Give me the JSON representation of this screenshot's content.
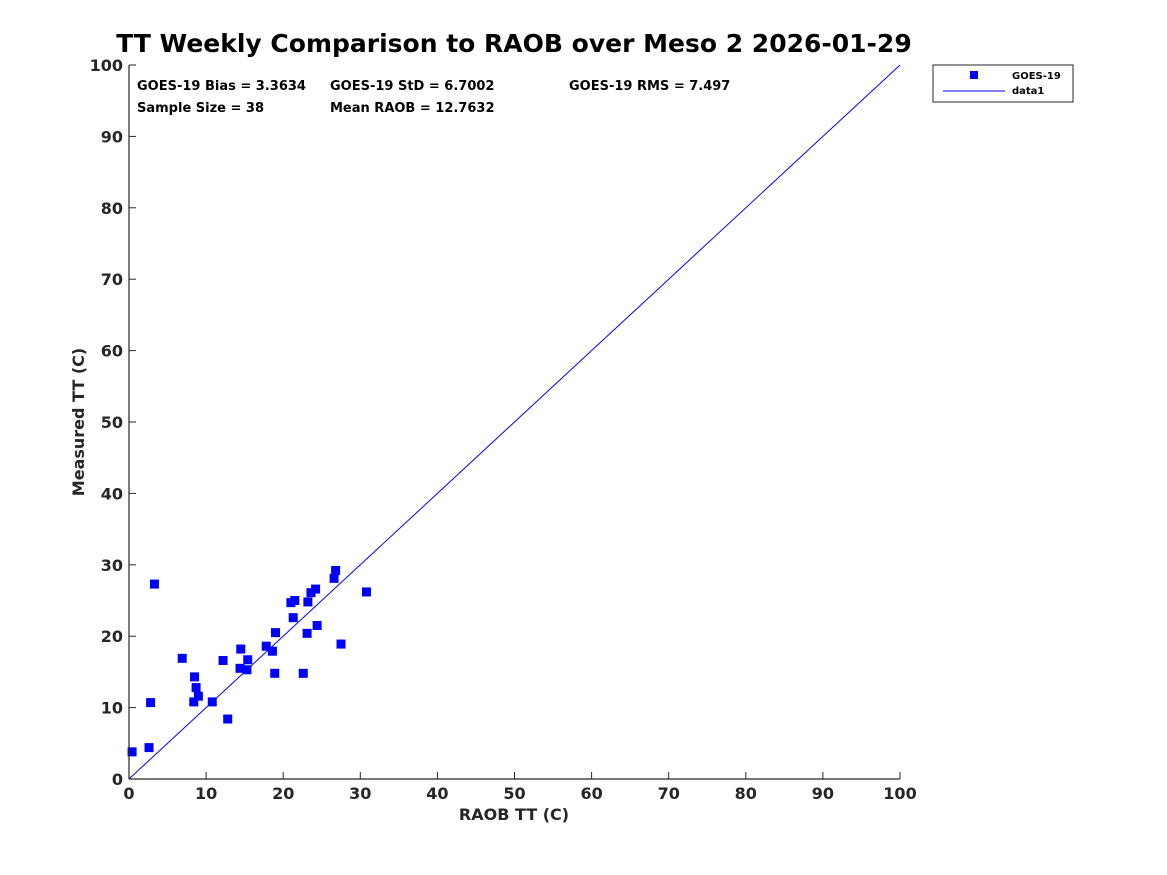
{
  "chart_data": {
    "type": "scatter",
    "title": "TT Weekly Comparison to RAOB over Meso 2 2026-01-29",
    "xlabel": "RAOB TT (C)",
    "ylabel": "Measured TT (C)",
    "xlim": [
      0,
      100
    ],
    "ylim": [
      0,
      100
    ],
    "xticks": [
      "0",
      "10",
      "20",
      "30",
      "40",
      "50",
      "60",
      "70",
      "80",
      "90",
      "100"
    ],
    "yticks": [
      "0",
      "10",
      "20",
      "30",
      "40",
      "50",
      "60",
      "70",
      "80",
      "90",
      "100"
    ],
    "grid": false,
    "legend_position": "outside-top-right",
    "stats": [
      "GOES-19 Bias = 3.3634",
      "GOES-19 StD = 6.7002",
      "GOES-19 RMS = 7.497",
      "Sample Size = 38",
      "Mean RAOB = 12.7632"
    ],
    "series": [
      {
        "name": "GOES-19",
        "kind": "scatter",
        "marker": "square",
        "color": "#0000ff",
        "points": [
          [
            0.4,
            3.8
          ],
          [
            2.6,
            4.4
          ],
          [
            2.8,
            10.7
          ],
          [
            3.3,
            27.3
          ],
          [
            6.9,
            16.9
          ],
          [
            8.4,
            10.8
          ],
          [
            8.5,
            14.3
          ],
          [
            8.7,
            12.8
          ],
          [
            9.0,
            11.6
          ],
          [
            10.8,
            10.8
          ],
          [
            12.2,
            16.6
          ],
          [
            12.8,
            8.4
          ],
          [
            14.4,
            15.5
          ],
          [
            14.5,
            18.2
          ],
          [
            15.3,
            15.3
          ],
          [
            15.4,
            16.7
          ],
          [
            17.8,
            18.6
          ],
          [
            18.6,
            17.9
          ],
          [
            18.9,
            14.8
          ],
          [
            19.0,
            20.5
          ],
          [
            21.0,
            24.7
          ],
          [
            21.3,
            22.6
          ],
          [
            21.5,
            25.0
          ],
          [
            22.6,
            14.8
          ],
          [
            23.1,
            20.4
          ],
          [
            23.2,
            24.8
          ],
          [
            23.6,
            26.1
          ],
          [
            24.2,
            26.6
          ],
          [
            24.4,
            21.5
          ],
          [
            26.6,
            28.1
          ],
          [
            26.8,
            29.2
          ],
          [
            27.5,
            18.9
          ],
          [
            30.8,
            26.2
          ]
        ]
      },
      {
        "name": "data1",
        "kind": "line",
        "color": "#0000ff",
        "points": [
          [
            0,
            0
          ],
          [
            100,
            100
          ]
        ]
      }
    ]
  }
}
